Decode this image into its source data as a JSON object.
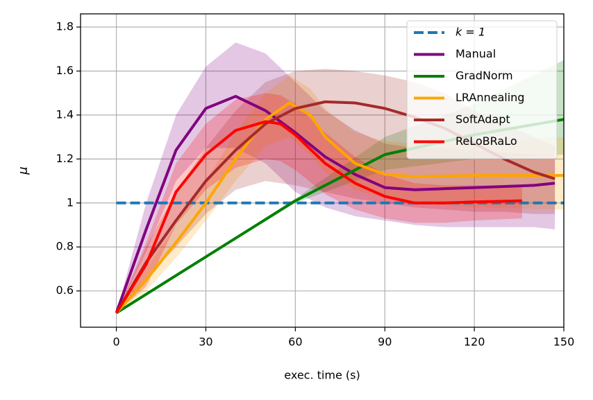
{
  "chart_data": {
    "type": "line",
    "xlabel": "exec. time (s)",
    "ylabel": "μ",
    "xlim": [
      -12,
      150
    ],
    "ylim": [
      0.435,
      1.86
    ],
    "xticks": [
      0,
      30,
      60,
      90,
      120,
      150
    ],
    "yticks": [
      0.6,
      0.8,
      1.0,
      1.2,
      1.4,
      1.6,
      1.8
    ],
    "grid": true,
    "legend": "upper right",
    "series": [
      {
        "name": "k = 1",
        "color": "#1f77b4",
        "dashed": true,
        "x": [
          0,
          150
        ],
        "values": [
          1.0,
          1.0
        ]
      },
      {
        "name": "Manual",
        "color": "#800080",
        "x": [
          0,
          10,
          20,
          30,
          40,
          50,
          60,
          70,
          80,
          90,
          100,
          110,
          120,
          130,
          140,
          147
        ],
        "values": [
          0.5,
          0.88,
          1.24,
          1.43,
          1.485,
          1.42,
          1.32,
          1.21,
          1.13,
          1.07,
          1.06,
          1.065,
          1.07,
          1.075,
          1.08,
          1.09
        ],
        "lower": [
          0.5,
          0.78,
          1.1,
          1.25,
          1.25,
          1.18,
          1.05,
          0.98,
          0.94,
          0.92,
          0.9,
          0.89,
          0.89,
          0.89,
          0.89,
          0.88
        ],
        "upper": [
          0.5,
          1.0,
          1.4,
          1.62,
          1.73,
          1.68,
          1.55,
          1.42,
          1.33,
          1.27,
          1.25,
          1.25,
          1.24,
          1.23,
          1.22,
          1.22
        ]
      },
      {
        "name": "GradNorm",
        "color": "#008000",
        "x": [
          0,
          60,
          90,
          120,
          150
        ],
        "values": [
          0.5,
          1.01,
          1.22,
          1.31,
          1.38
        ],
        "lower": [
          0.5,
          1.0,
          1.15,
          1.2,
          1.22
        ],
        "upper": [
          0.5,
          1.02,
          1.3,
          1.45,
          1.65
        ]
      },
      {
        "name": "LRAnnealing",
        "color": "#ffa500",
        "x": [
          0,
          10,
          20,
          30,
          40,
          50,
          58,
          65,
          70,
          80,
          90,
          100,
          120,
          150
        ],
        "values": [
          0.5,
          0.65,
          0.82,
          1.0,
          1.2,
          1.38,
          1.455,
          1.4,
          1.3,
          1.18,
          1.13,
          1.12,
          1.125,
          1.125
        ],
        "lower": [
          0.5,
          0.6,
          0.75,
          0.92,
          1.1,
          1.26,
          1.3,
          1.22,
          1.14,
          1.06,
          1.02,
          1.0,
          0.98,
          0.97
        ],
        "upper": [
          0.5,
          0.7,
          0.9,
          1.1,
          1.32,
          1.5,
          1.58,
          1.52,
          1.43,
          1.32,
          1.28,
          1.27,
          1.28,
          1.3
        ]
      },
      {
        "name": "SoftAdapt",
        "color": "#a52a2a",
        "x": [
          0,
          10,
          20,
          30,
          40,
          50,
          60,
          70,
          80,
          90,
          100,
          110,
          120,
          130,
          140,
          147
        ],
        "values": [
          0.5,
          0.73,
          0.92,
          1.1,
          1.24,
          1.36,
          1.43,
          1.46,
          1.455,
          1.43,
          1.39,
          1.34,
          1.27,
          1.2,
          1.14,
          1.11
        ],
        "lower": [
          0.5,
          0.66,
          0.8,
          0.95,
          1.06,
          1.1,
          1.08,
          1.05,
          1.02,
          1.0,
          0.98,
          0.97,
          0.96,
          0.96,
          0.95,
          0.95
        ],
        "upper": [
          0.5,
          0.8,
          1.05,
          1.25,
          1.42,
          1.55,
          1.6,
          1.61,
          1.6,
          1.58,
          1.55,
          1.5,
          1.42,
          1.36,
          1.3,
          1.26
        ]
      },
      {
        "name": "ReLoBRaLo",
        "color": "#ff0000",
        "x": [
          0,
          10,
          20,
          30,
          40,
          50,
          55,
          60,
          70,
          80,
          90,
          100,
          110,
          120,
          136
        ],
        "values": [
          0.5,
          0.72,
          1.05,
          1.22,
          1.33,
          1.37,
          1.36,
          1.31,
          1.18,
          1.09,
          1.03,
          1.0,
          1.0,
          1.005,
          1.01
        ],
        "lower": [
          0.5,
          0.62,
          0.9,
          1.06,
          1.16,
          1.2,
          1.19,
          1.15,
          1.04,
          0.97,
          0.93,
          0.91,
          0.91,
          0.92,
          0.93
        ],
        "upper": [
          0.5,
          0.82,
          1.18,
          1.36,
          1.47,
          1.5,
          1.49,
          1.45,
          1.32,
          1.21,
          1.13,
          1.09,
          1.08,
          1.08,
          1.08
        ]
      }
    ]
  }
}
